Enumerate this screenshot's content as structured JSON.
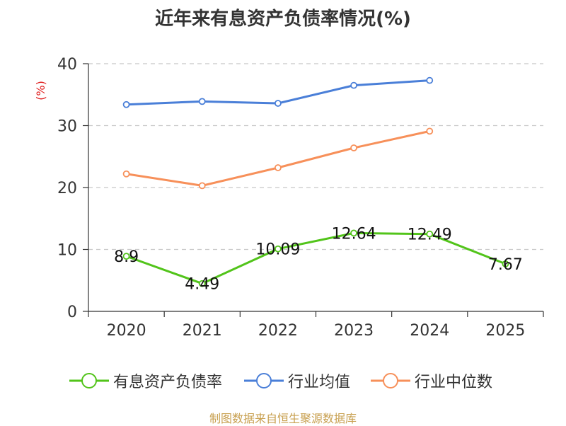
{
  "chart_data": {
    "type": "line",
    "title": "近年来有息资产负债率情况(%)",
    "ylabel": "(%)",
    "xlabel": "",
    "categories": [
      "2020",
      "2021",
      "2022",
      "2023",
      "2024",
      "2025"
    ],
    "ylim": [
      0,
      40
    ],
    "yticks": [
      0,
      10,
      20,
      30,
      40
    ],
    "grid": true,
    "legend_position": "bottom",
    "series": [
      {
        "name": "有息资产负债率",
        "color": "#52c41a",
        "values": [
          8.9,
          4.49,
          10.09,
          12.64,
          12.49,
          7.67
        ],
        "data_labels": [
          "8.9",
          "4.49",
          "10.09",
          "12.64",
          "12.49",
          "7.67"
        ]
      },
      {
        "name": "行业均值",
        "color": "#4a7fd8",
        "values": [
          33.4,
          33.9,
          33.6,
          36.5,
          37.3,
          null
        ]
      },
      {
        "name": "行业中位数",
        "color": "#f7905a",
        "values": [
          22.2,
          20.3,
          23.2,
          26.4,
          29.1,
          null
        ]
      }
    ]
  },
  "footer": {
    "source": "制图数据来自恒生聚源数据库"
  }
}
